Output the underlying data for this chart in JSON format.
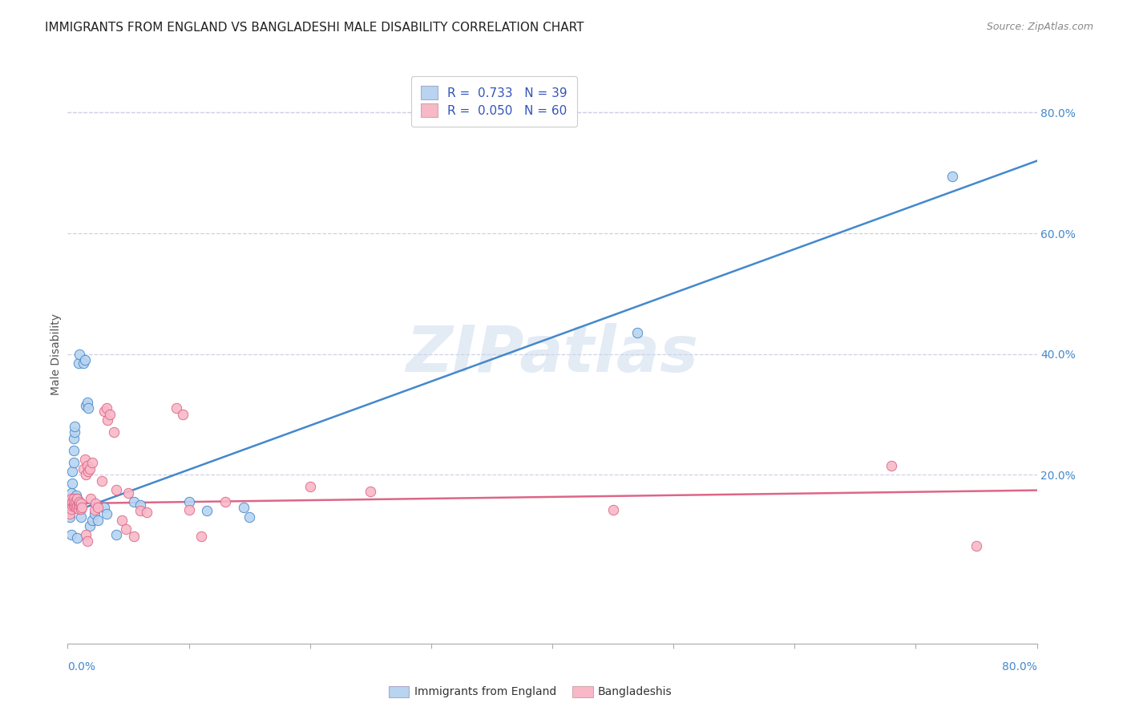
{
  "title": "IMMIGRANTS FROM ENGLAND VS BANGLADESHI MALE DISABILITY CORRELATION CHART",
  "source": "Source: ZipAtlas.com",
  "ylabel": "Male Disability",
  "right_yticks": [
    0.8,
    0.6,
    0.4,
    0.2
  ],
  "right_ytick_labels": [
    "80.0%",
    "60.0%",
    "40.0%",
    "20.0%"
  ],
  "xmin": 0.0,
  "xmax": 0.8,
  "ymin": -0.08,
  "ymax": 0.88,
  "legend1_label": "R =  0.733   N = 39",
  "legend2_label": "R =  0.050   N = 60",
  "legend1_facecolor": "#b8d4f0",
  "legend2_facecolor": "#f8b8c8",
  "line1_color": "#4488cc",
  "line2_color": "#dd6688",
  "watermark": "ZIPatlas",
  "blue_points": [
    [
      0.001,
      0.145
    ],
    [
      0.002,
      0.13
    ],
    [
      0.003,
      0.17
    ],
    [
      0.004,
      0.185
    ],
    [
      0.004,
      0.205
    ],
    [
      0.005,
      0.22
    ],
    [
      0.005,
      0.24
    ],
    [
      0.005,
      0.26
    ],
    [
      0.006,
      0.27
    ],
    [
      0.006,
      0.28
    ],
    [
      0.007,
      0.155
    ],
    [
      0.007,
      0.165
    ],
    [
      0.008,
      0.16
    ],
    [
      0.009,
      0.385
    ],
    [
      0.01,
      0.4
    ],
    [
      0.01,
      0.155
    ],
    [
      0.011,
      0.13
    ],
    [
      0.013,
      0.385
    ],
    [
      0.014,
      0.39
    ],
    [
      0.015,
      0.315
    ],
    [
      0.016,
      0.32
    ],
    [
      0.017,
      0.31
    ],
    [
      0.018,
      0.115
    ],
    [
      0.02,
      0.125
    ],
    [
      0.022,
      0.135
    ],
    [
      0.025,
      0.125
    ],
    [
      0.03,
      0.145
    ],
    [
      0.032,
      0.135
    ],
    [
      0.04,
      0.1
    ],
    [
      0.055,
      0.155
    ],
    [
      0.06,
      0.15
    ],
    [
      0.1,
      0.155
    ],
    [
      0.115,
      0.14
    ],
    [
      0.145,
      0.145
    ],
    [
      0.15,
      0.13
    ],
    [
      0.47,
      0.435
    ],
    [
      0.73,
      0.695
    ],
    [
      0.003,
      0.1
    ],
    [
      0.008,
      0.095
    ]
  ],
  "pink_points": [
    [
      0.001,
      0.14
    ],
    [
      0.001,
      0.15
    ],
    [
      0.002,
      0.135
    ],
    [
      0.002,
      0.148
    ],
    [
      0.003,
      0.143
    ],
    [
      0.003,
      0.155
    ],
    [
      0.003,
      0.16
    ],
    [
      0.004,
      0.148
    ],
    [
      0.004,
      0.155
    ],
    [
      0.005,
      0.15
    ],
    [
      0.005,
      0.16
    ],
    [
      0.006,
      0.148
    ],
    [
      0.006,
      0.155
    ],
    [
      0.007,
      0.145
    ],
    [
      0.007,
      0.155
    ],
    [
      0.008,
      0.148
    ],
    [
      0.008,
      0.16
    ],
    [
      0.009,
      0.143
    ],
    [
      0.009,
      0.152
    ],
    [
      0.01,
      0.148
    ],
    [
      0.01,
      0.155
    ],
    [
      0.011,
      0.143
    ],
    [
      0.011,
      0.152
    ],
    [
      0.012,
      0.145
    ],
    [
      0.013,
      0.21
    ],
    [
      0.014,
      0.225
    ],
    [
      0.015,
      0.2
    ],
    [
      0.016,
      0.215
    ],
    [
      0.017,
      0.205
    ],
    [
      0.018,
      0.21
    ],
    [
      0.019,
      0.16
    ],
    [
      0.02,
      0.22
    ],
    [
      0.022,
      0.142
    ],
    [
      0.023,
      0.152
    ],
    [
      0.025,
      0.145
    ],
    [
      0.028,
      0.19
    ],
    [
      0.03,
      0.305
    ],
    [
      0.032,
      0.31
    ],
    [
      0.033,
      0.29
    ],
    [
      0.035,
      0.3
    ],
    [
      0.038,
      0.27
    ],
    [
      0.04,
      0.175
    ],
    [
      0.045,
      0.125
    ],
    [
      0.048,
      0.11
    ],
    [
      0.05,
      0.17
    ],
    [
      0.055,
      0.098
    ],
    [
      0.06,
      0.14
    ],
    [
      0.065,
      0.138
    ],
    [
      0.09,
      0.31
    ],
    [
      0.095,
      0.3
    ],
    [
      0.1,
      0.142
    ],
    [
      0.11,
      0.098
    ],
    [
      0.13,
      0.155
    ],
    [
      0.2,
      0.18
    ],
    [
      0.25,
      0.172
    ],
    [
      0.45,
      0.142
    ],
    [
      0.68,
      0.215
    ],
    [
      0.75,
      0.082
    ],
    [
      0.015,
      0.1
    ],
    [
      0.016,
      0.09
    ]
  ],
  "blue_line": {
    "x0": 0.0,
    "y0": 0.135,
    "x1": 0.8,
    "y1": 0.72
  },
  "pink_line": {
    "x0": 0.0,
    "y0": 0.152,
    "x1": 0.8,
    "y1": 0.174
  },
  "background_color": "#ffffff",
  "grid_color": "#d0d0e8",
  "title_fontsize": 11,
  "axis_label_fontsize": 10,
  "tick_fontsize": 10,
  "source_fontsize": 9
}
